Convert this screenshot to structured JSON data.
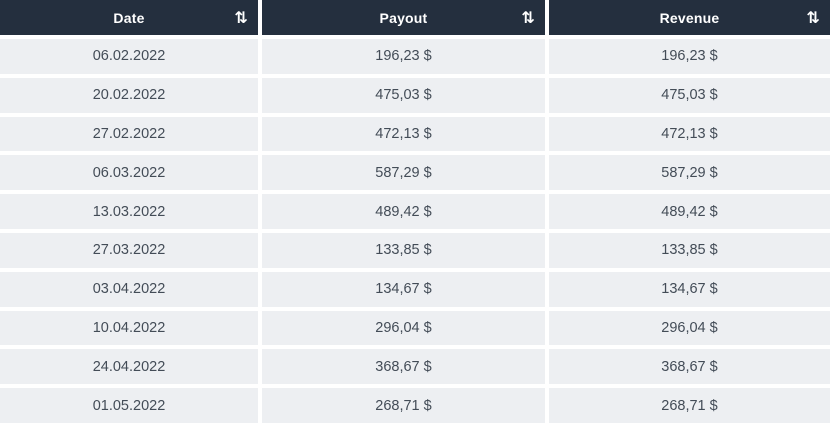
{
  "table": {
    "sort_icon_glyph": "⇅",
    "columns": [
      {
        "label": "Date"
      },
      {
        "label": "Payout"
      },
      {
        "label": "Revenue"
      }
    ],
    "rows": [
      {
        "date": "06.02.2022",
        "payout": "196,23 $",
        "revenue": "196,23 $"
      },
      {
        "date": "20.02.2022",
        "payout": "475,03 $",
        "revenue": "475,03 $"
      },
      {
        "date": "27.02.2022",
        "payout": "472,13 $",
        "revenue": "472,13 $"
      },
      {
        "date": "06.03.2022",
        "payout": "587,29 $",
        "revenue": "587,29 $"
      },
      {
        "date": "13.03.2022",
        "payout": "489,42 $",
        "revenue": "489,42 $"
      },
      {
        "date": "27.03.2022",
        "payout": "133,85 $",
        "revenue": "133,85 $"
      },
      {
        "date": "03.04.2022",
        "payout": "134,67 $",
        "revenue": "134,67 $"
      },
      {
        "date": "10.04.2022",
        "payout": "296,04 $",
        "revenue": "296,04 $"
      },
      {
        "date": "24.04.2022",
        "payout": "368,67 $",
        "revenue": "368,67 $"
      },
      {
        "date": "01.05.2022",
        "payout": "268,71 $",
        "revenue": "268,71 $"
      }
    ],
    "colors": {
      "header_background": "#242f3e",
      "header_text": "#ffffff",
      "row_background": "#edeff2",
      "cell_text": "#434c57",
      "gutter": "#ffffff"
    }
  }
}
